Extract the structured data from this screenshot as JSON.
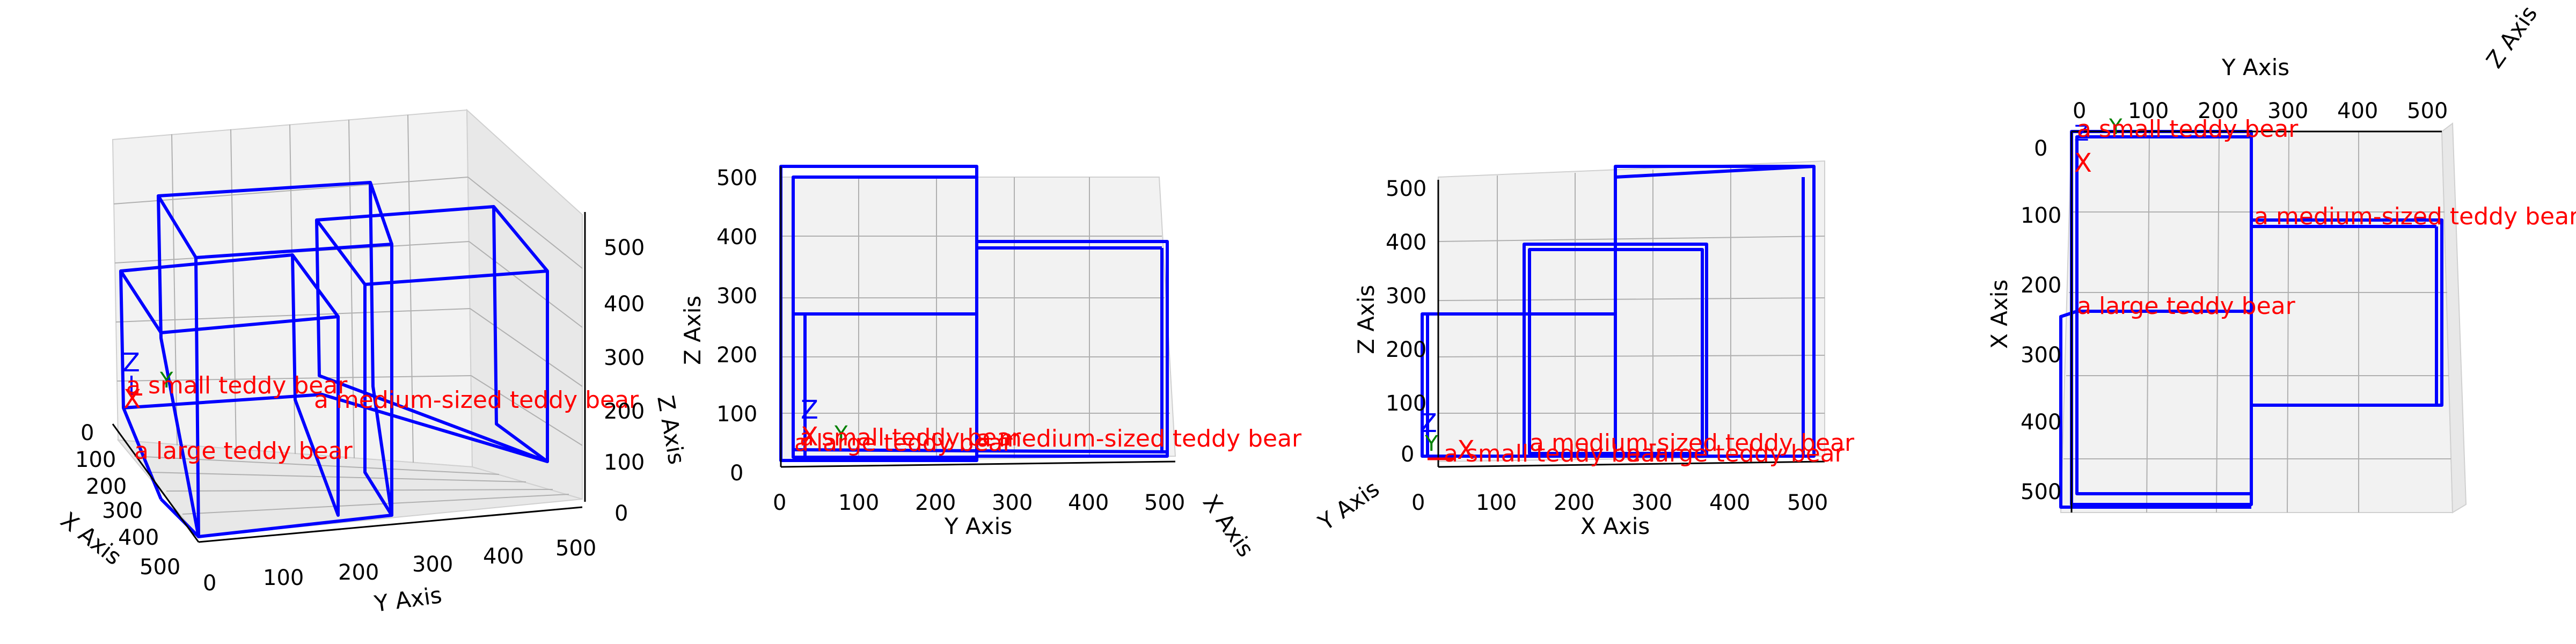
{
  "axis_labels": {
    "x": "X Axis",
    "y": "Y Axis",
    "z": "Z Axis"
  },
  "triad_labels": {
    "x": "X",
    "y": "Y",
    "z": "Z"
  },
  "colors": {
    "box": "#0000ff",
    "label": "#ff0000",
    "triad_x": "#ff0000",
    "triad_y": "#008000",
    "triad_z": "#0000ff"
  },
  "chart_data": [
    {
      "type": "3d-box",
      "view": "perspective",
      "xlim": [
        0,
        500
      ],
      "ylim": [
        0,
        500
      ],
      "zlim": [
        0,
        500
      ],
      "ticks": {
        "x": [
          0,
          100,
          200,
          300,
          400,
          500
        ],
        "y": [
          0,
          100,
          200,
          300,
          400,
          500
        ],
        "z": [
          0,
          100,
          200,
          300,
          400,
          500
        ]
      },
      "labels": [
        "a small teddy bear",
        "a medium-sized teddy bear",
        "a large teddy bear"
      ],
      "grid": true
    },
    {
      "type": "3d-box",
      "view": "Y-Z projection",
      "ticks": {
        "y": [
          0,
          100,
          200,
          300,
          400,
          500
        ],
        "z": [
          0,
          100,
          200,
          300,
          400,
          500
        ]
      },
      "labels": [
        "a small teddy bear",
        "a large teddy bear",
        "a medium-sized teddy bear"
      ],
      "grid": true
    },
    {
      "type": "3d-box",
      "view": "X-Z projection",
      "ticks": {
        "x": [
          0,
          100,
          200,
          300,
          400,
          500
        ],
        "z": [
          0,
          100,
          200,
          300,
          400,
          500
        ]
      },
      "labels": [
        "a small teddy bear",
        "a medium-sized teddy bear",
        "a large teddy bear"
      ],
      "grid": true
    },
    {
      "type": "3d-box",
      "view": "X-Y projection (top)",
      "ticks": {
        "x": [
          0,
          100,
          200,
          300,
          400,
          500
        ],
        "y": [
          0,
          100,
          200,
          300,
          400,
          500
        ]
      },
      "labels": [
        "a small teddy bear",
        "a medium-sized teddy bear",
        "a large teddy bear"
      ],
      "grid": true
    }
  ]
}
